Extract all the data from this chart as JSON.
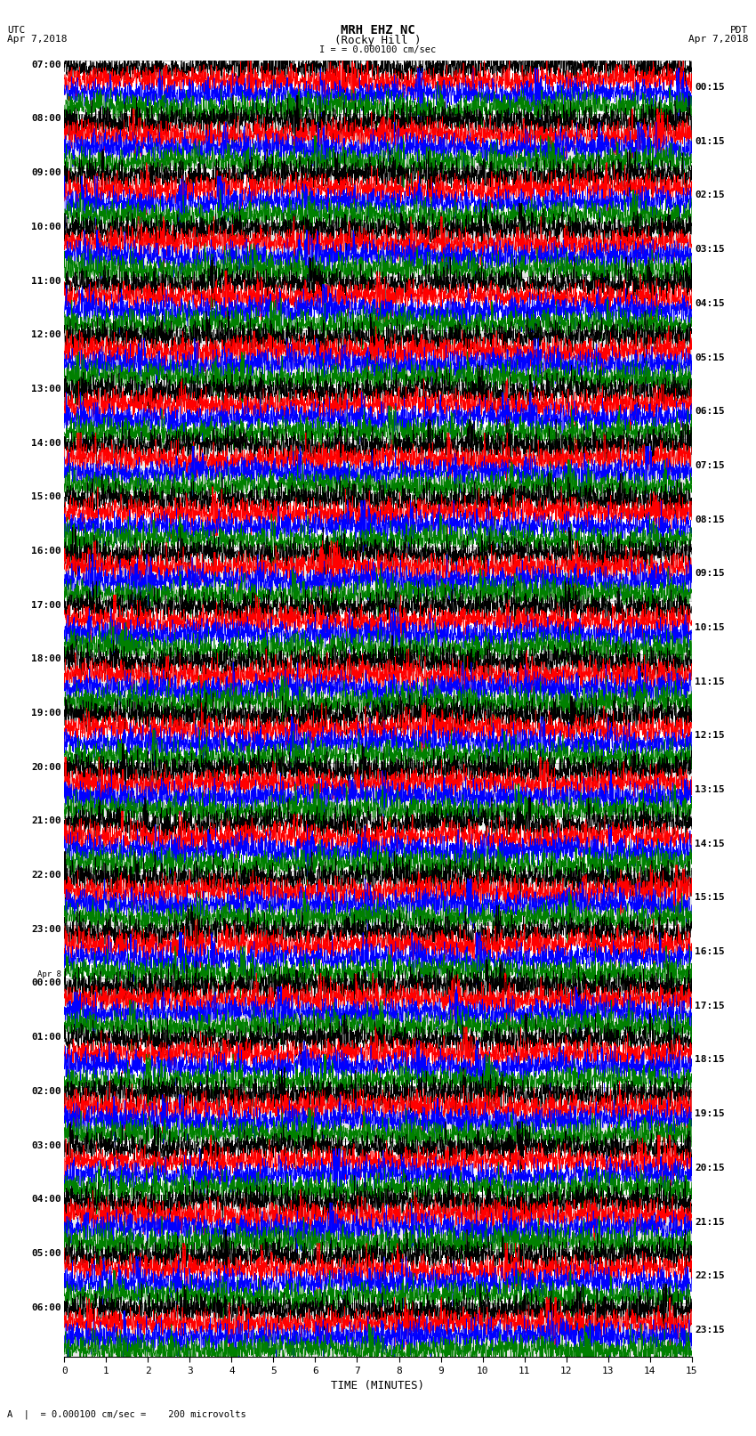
{
  "title_line1": "MRH EHZ NC",
  "title_line2": "(Rocky Hill )",
  "scale_label": "= 0.000100 cm/sec",
  "bottom_label": "A  |  = 0.000100 cm/sec =    200 microvolts",
  "utc_label": "UTC",
  "utc_date": "Apr 7,2018",
  "pdt_label": "PDT",
  "pdt_date": "Apr 7,2018",
  "xlabel": "TIME (MINUTES)",
  "left_times": [
    "07:00",
    "08:00",
    "09:00",
    "10:00",
    "11:00",
    "12:00",
    "13:00",
    "14:00",
    "15:00",
    "16:00",
    "17:00",
    "18:00",
    "19:00",
    "20:00",
    "21:00",
    "22:00",
    "23:00",
    "00:00",
    "01:00",
    "02:00",
    "03:00",
    "04:00",
    "05:00",
    "06:00"
  ],
  "apr8_row": 17,
  "right_times": [
    "00:15",
    "01:15",
    "02:15",
    "03:15",
    "04:15",
    "05:15",
    "06:15",
    "07:15",
    "08:15",
    "09:15",
    "10:15",
    "11:15",
    "12:15",
    "13:15",
    "14:15",
    "15:15",
    "16:15",
    "17:15",
    "18:15",
    "19:15",
    "20:15",
    "21:15",
    "22:15",
    "23:15"
  ],
  "colors": [
    "black",
    "red",
    "blue",
    "green"
  ],
  "band_colors": [
    "#ffffff",
    "#e8e8e8"
  ],
  "bg_color": "white",
  "n_rows": 24,
  "traces_per_row": 4,
  "fig_width": 8.5,
  "fig_height": 16.13,
  "xlim": [
    0,
    15
  ],
  "xticks": [
    0,
    1,
    2,
    3,
    4,
    5,
    6,
    7,
    8,
    9,
    10,
    11,
    12,
    13,
    14,
    15
  ]
}
